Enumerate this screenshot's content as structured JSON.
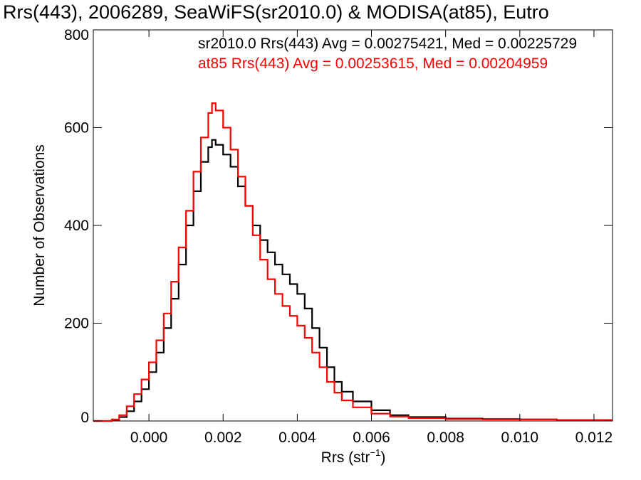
{
  "chart_data": {
    "type": "line",
    "title": "Rrs(443), 2006289, SeaWiFS(sr2010.0) & MODISA(at85), Eutro",
    "xlabel_main": "Rrs (str",
    "xlabel_sup": "−1",
    "xlabel_close": ")",
    "ylabel": "Number of Observations",
    "xlim": [
      -0.0015,
      0.0125
    ],
    "ylim": [
      0,
      800
    ],
    "x_ticks": [
      0.0,
      0.002,
      0.004,
      0.006,
      0.008,
      0.01,
      0.012
    ],
    "x_tick_labels": [
      "0.000",
      "0.002",
      "0.004",
      "0.006",
      "0.008",
      "0.010",
      "0.012"
    ],
    "y_ticks": [
      0,
      200,
      400,
      600,
      800
    ],
    "y_tick_labels": [
      "0",
      "200",
      "400",
      "600",
      "800"
    ],
    "grid": false,
    "legend_position": "top-right",
    "series": [
      {
        "name": "sr2010.0",
        "legend": "sr2010.0 Rrs(443) Avg = 0.00275421, Med = 0.00225729",
        "color": "#000000",
        "points": [
          [
            -0.0015,
            0
          ],
          [
            -0.001,
            2
          ],
          [
            -0.0008,
            8
          ],
          [
            -0.0006,
            20
          ],
          [
            -0.0004,
            40
          ],
          [
            -0.0002,
            65
          ],
          [
            0.0,
            100
          ],
          [
            0.0002,
            140
          ],
          [
            0.0004,
            190
          ],
          [
            0.0006,
            250
          ],
          [
            0.0008,
            320
          ],
          [
            0.001,
            400
          ],
          [
            0.0012,
            470
          ],
          [
            0.0014,
            530
          ],
          [
            0.0016,
            560
          ],
          [
            0.0017,
            575
          ],
          [
            0.0018,
            565
          ],
          [
            0.002,
            545
          ],
          [
            0.0022,
            520
          ],
          [
            0.0024,
            480
          ],
          [
            0.0026,
            440
          ],
          [
            0.0028,
            400
          ],
          [
            0.003,
            370
          ],
          [
            0.0032,
            345
          ],
          [
            0.0034,
            320
          ],
          [
            0.0036,
            300
          ],
          [
            0.0038,
            280
          ],
          [
            0.004,
            260
          ],
          [
            0.0042,
            230
          ],
          [
            0.0044,
            190
          ],
          [
            0.0046,
            150
          ],
          [
            0.0048,
            110
          ],
          [
            0.005,
            80
          ],
          [
            0.0052,
            60
          ],
          [
            0.0055,
            40
          ],
          [
            0.006,
            22
          ],
          [
            0.0065,
            12
          ],
          [
            0.007,
            8
          ],
          [
            0.008,
            5
          ],
          [
            0.009,
            4
          ],
          [
            0.01,
            3
          ],
          [
            0.011,
            2
          ],
          [
            0.0125,
            2
          ]
        ]
      },
      {
        "name": "at85",
        "legend": "at85 Rrs(443) Avg = 0.00253615, Med = 0.00204959",
        "color": "#ff0000",
        "points": [
          [
            -0.0015,
            0
          ],
          [
            -0.001,
            3
          ],
          [
            -0.0008,
            12
          ],
          [
            -0.0006,
            30
          ],
          [
            -0.0004,
            55
          ],
          [
            -0.0002,
            85
          ],
          [
            0.0,
            120
          ],
          [
            0.0002,
            165
          ],
          [
            0.0004,
            220
          ],
          [
            0.0006,
            285
          ],
          [
            0.0008,
            355
          ],
          [
            0.001,
            430
          ],
          [
            0.0012,
            510
          ],
          [
            0.0014,
            580
          ],
          [
            0.0016,
            630
          ],
          [
            0.0017,
            650
          ],
          [
            0.0018,
            635
          ],
          [
            0.002,
            600
          ],
          [
            0.0022,
            555
          ],
          [
            0.0024,
            500
          ],
          [
            0.0026,
            440
          ],
          [
            0.0028,
            380
          ],
          [
            0.003,
            330
          ],
          [
            0.0032,
            290
          ],
          [
            0.0034,
            260
          ],
          [
            0.0036,
            235
          ],
          [
            0.0038,
            215
          ],
          [
            0.004,
            195
          ],
          [
            0.0042,
            170
          ],
          [
            0.0044,
            140
          ],
          [
            0.0046,
            110
          ],
          [
            0.0048,
            80
          ],
          [
            0.005,
            58
          ],
          [
            0.0052,
            42
          ],
          [
            0.0055,
            28
          ],
          [
            0.006,
            15
          ],
          [
            0.0065,
            9
          ],
          [
            0.007,
            6
          ],
          [
            0.008,
            4
          ],
          [
            0.009,
            3
          ],
          [
            0.01,
            3
          ],
          [
            0.011,
            2
          ],
          [
            0.0125,
            2
          ]
        ]
      }
    ]
  }
}
